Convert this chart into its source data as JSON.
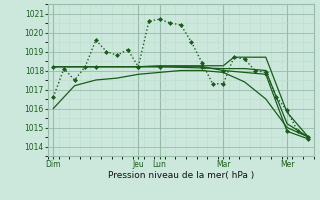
{
  "bg_color": "#cce8dd",
  "grid_major_color": "#99bbaa",
  "grid_minor_color": "#bbddcc",
  "line_color": "#1a5c1a",
  "title": "Pression niveau de la mer( hPa )",
  "ylabel_ticks": [
    1014,
    1015,
    1016,
    1017,
    1018,
    1019,
    1020,
    1021
  ],
  "ylim": [
    1013.5,
    1021.5
  ],
  "xlim": [
    0,
    25
  ],
  "xticklabels": [
    "Dim",
    "Jeu",
    "Lun",
    "Mar",
    "Mer"
  ],
  "xtick_positions": [
    0.5,
    8.5,
    10.5,
    16.5,
    22.5
  ],
  "vline_positions": [
    0.5,
    8.5,
    10.5,
    16.5,
    22.5
  ],
  "series": [
    {
      "x": [
        0.5,
        1.5,
        2.5,
        3.5,
        4.5,
        5.5,
        6.5,
        7.5,
        8.5,
        9.5,
        10.5,
        11.5,
        12.5,
        13.5,
        14.5,
        15.5,
        16.5,
        17.5,
        18.5,
        19.5,
        20.5,
        21.5,
        22.5,
        23.5,
        24.5
      ],
      "y": [
        1016.6,
        1018.1,
        1017.5,
        1018.2,
        1019.6,
        1019.0,
        1018.8,
        1019.1,
        1018.2,
        1020.6,
        1020.7,
        1020.5,
        1020.4,
        1019.5,
        1018.4,
        1017.3,
        1017.3,
        1018.7,
        1018.6,
        1018.0,
        1017.9,
        1016.6,
        1015.9,
        1014.8,
        1014.5
      ],
      "marker": "D",
      "markersize": 2.0,
      "linewidth": 1.0,
      "linestyle": ":"
    },
    {
      "x": [
        0.5,
        8.5,
        10.5,
        16.5,
        17.5,
        18.5,
        20.5,
        22.5,
        24.5
      ],
      "y": [
        1018.2,
        1018.2,
        1018.25,
        1018.25,
        1018.7,
        1018.7,
        1018.7,
        1015.8,
        1014.5
      ],
      "marker": null,
      "markersize": 0,
      "linewidth": 0.9,
      "linestyle": "-"
    },
    {
      "x": [
        0.5,
        8.5,
        10.5,
        16.5,
        18.5,
        20.5,
        22.5,
        24.5
      ],
      "y": [
        1018.2,
        1018.2,
        1018.2,
        1018.1,
        1018.1,
        1018.0,
        1015.2,
        1014.5
      ],
      "marker": null,
      "markersize": 0,
      "linewidth": 0.9,
      "linestyle": "-"
    },
    {
      "x": [
        0.5,
        4.5,
        8.5,
        10.5,
        14.5,
        16.5,
        20.5,
        22.5,
        24.5
      ],
      "y": [
        1018.2,
        1018.2,
        1018.2,
        1018.2,
        1018.2,
        1018.0,
        1017.8,
        1014.8,
        1014.4
      ],
      "marker": "D",
      "markersize": 2.0,
      "linewidth": 0.9,
      "linestyle": "-"
    },
    {
      "x": [
        0.5,
        2.5,
        4.5,
        6.5,
        8.5,
        10.5,
        12.5,
        14.5,
        16.5,
        18.5,
        20.5,
        22.5,
        24.5
      ],
      "y": [
        1016.0,
        1017.2,
        1017.5,
        1017.6,
        1017.8,
        1017.9,
        1018.0,
        1018.0,
        1017.9,
        1017.4,
        1016.5,
        1015.0,
        1014.5
      ],
      "marker": null,
      "markersize": 0,
      "linewidth": 0.9,
      "linestyle": "-"
    }
  ]
}
